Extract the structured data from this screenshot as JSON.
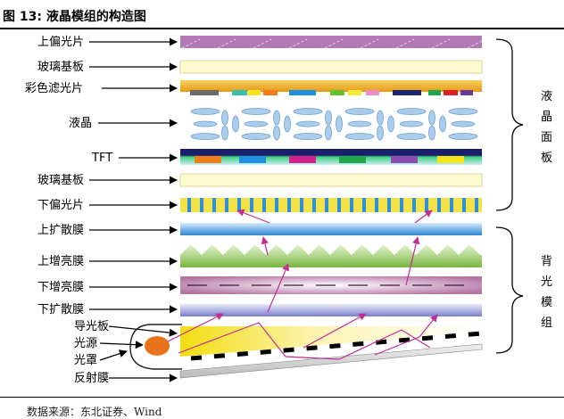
{
  "figure": {
    "title": "图 13: 液晶模组的构造图",
    "source": "数据来源：东北证券、Wind"
  },
  "layers": [
    "上偏光片",
    "玻璃基板",
    "彩色滤光片",
    "液晶",
    "TFT",
    "玻璃基板",
    "下偏光片",
    "上扩散膜",
    "上增亮膜",
    "下增亮膜",
    "下扩散膜",
    "导光板",
    "光源",
    "光罩",
    "反射膜"
  ],
  "groups": {
    "panel": [
      "液",
      "晶",
      "面",
      "板"
    ],
    "backlight": [
      "背",
      "光",
      "模",
      "组"
    ]
  },
  "colors": {
    "polarizer_top": "#b179b6",
    "glass": "#fffbd0",
    "color_filter": "#f2b12a",
    "liquid_crystal": "#a9cdea",
    "tft": "#1a1f6b",
    "polarizer_bottom": "#f2e24a",
    "diffuser": "#5ea8e4",
    "prism": "#8cc856",
    "brightness_film": "#b475a4",
    "light_guide": "#f7e440",
    "light_source": "#e8731c",
    "ray": "#c02f92"
  }
}
